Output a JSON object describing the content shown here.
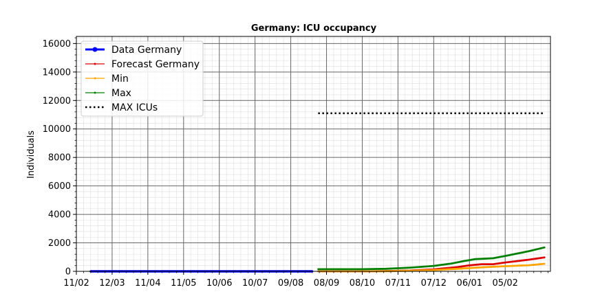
{
  "chart_data": {
    "type": "line",
    "title": "Germany: ICU occupancy",
    "xlabel": "",
    "ylabel": "Individuals",
    "x_tick_labels": [
      "11/02",
      "12/03",
      "11/04",
      "11/05",
      "10/06",
      "10/07",
      "09/08",
      "08/09",
      "08/10",
      "07/11",
      "07/12",
      "06/01",
      "05/02"
    ],
    "xlim": [
      -20,
      378
    ],
    "ylim": [
      0,
      16500
    ],
    "y_ticks": [
      0,
      2000,
      4000,
      6000,
      8000,
      10000,
      12000,
      14000,
      16000
    ],
    "y_tick_labels": [
      "0",
      "2000",
      "4000",
      "6000",
      "8000",
      "10000",
      "12000",
      "14000",
      "16000"
    ],
    "grid": true,
    "legend_position": "top-left",
    "series": [
      {
        "name": "Data Germany",
        "color": "#0000ff",
        "style": "solid-thick",
        "x": [
          -8,
          0,
          30,
          60,
          90,
          120,
          150,
          178
        ],
        "y": [
          0,
          0,
          0,
          0,
          0,
          0,
          0,
          0
        ]
      },
      {
        "name": "Forecast Germany",
        "color": "#dd0000",
        "style": "solid-markers",
        "x": [
          183,
          200,
          220,
          240,
          260,
          280,
          300,
          310,
          320,
          330,
          340,
          350,
          360,
          373
        ],
        "y": [
          0,
          0,
          0,
          20,
          60,
          140,
          300,
          420,
          500,
          500,
          620,
          720,
          820,
          980
        ]
      },
      {
        "name": "Min",
        "color": "#ffa500",
        "style": "solid-markers",
        "x": [
          183,
          200,
          220,
          240,
          260,
          280,
          300,
          320,
          340,
          360,
          373
        ],
        "y": [
          0,
          0,
          0,
          10,
          40,
          90,
          180,
          280,
          360,
          430,
          530
        ]
      },
      {
        "name": "Max",
        "color": "#008000",
        "style": "solid-markers",
        "x": [
          183,
          200,
          220,
          240,
          260,
          280,
          295,
          305,
          315,
          320,
          330,
          340,
          350,
          360,
          373
        ],
        "y": [
          150,
          150,
          150,
          180,
          260,
          380,
          550,
          720,
          860,
          880,
          920,
          1080,
          1250,
          1420,
          1680
        ]
      },
      {
        "name": "MAX ICUs",
        "color": "#000000",
        "style": "dotted",
        "x": [
          183,
          373
        ],
        "y": [
          11100,
          11100
        ]
      }
    ]
  }
}
